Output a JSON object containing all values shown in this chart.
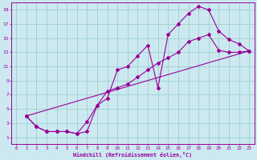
{
  "xlabel": "Windchill (Refroidissement éolien,°C)",
  "bg_color": "#cce8f0",
  "line_color": "#990099",
  "xlim": [
    -0.5,
    23.5
  ],
  "ylim": [
    0,
    20
  ],
  "xticks": [
    0,
    1,
    2,
    3,
    4,
    5,
    6,
    7,
    8,
    9,
    10,
    11,
    12,
    13,
    14,
    15,
    16,
    17,
    18,
    19,
    20,
    21,
    22,
    23
  ],
  "yticks": [
    1,
    3,
    5,
    7,
    9,
    11,
    13,
    15,
    17,
    19
  ],
  "grid_color": "#9ecfcc",
  "line1_x": [
    1,
    2,
    3,
    4,
    5,
    6,
    7,
    8,
    9,
    10,
    11,
    12,
    13,
    14,
    15,
    16,
    17,
    18,
    19,
    20,
    21,
    22,
    23
  ],
  "line1_y": [
    4,
    2.5,
    1.8,
    1.8,
    1.8,
    1.5,
    1.8,
    5.5,
    6.5,
    10.5,
    11.0,
    12.5,
    14.0,
    8.0,
    15.5,
    17.0,
    18.5,
    19.5,
    19.0,
    16.0,
    14.8,
    14.2,
    13.2
  ],
  "line2_x": [
    1,
    2,
    3,
    4,
    5,
    6,
    7,
    8,
    9,
    10,
    11,
    12,
    13,
    14,
    15,
    16,
    17,
    18,
    19,
    20,
    21,
    22,
    23
  ],
  "line2_y": [
    4,
    2.5,
    1.8,
    1.8,
    1.8,
    1.5,
    3.2,
    5.5,
    7.5,
    8.0,
    8.5,
    9.5,
    10.5,
    11.5,
    12.2,
    13.0,
    14.5,
    15.0,
    15.5,
    13.3,
    13.0,
    13.0,
    13.2
  ],
  "line3_x": [
    1,
    23
  ],
  "line3_y": [
    4,
    13.2
  ]
}
